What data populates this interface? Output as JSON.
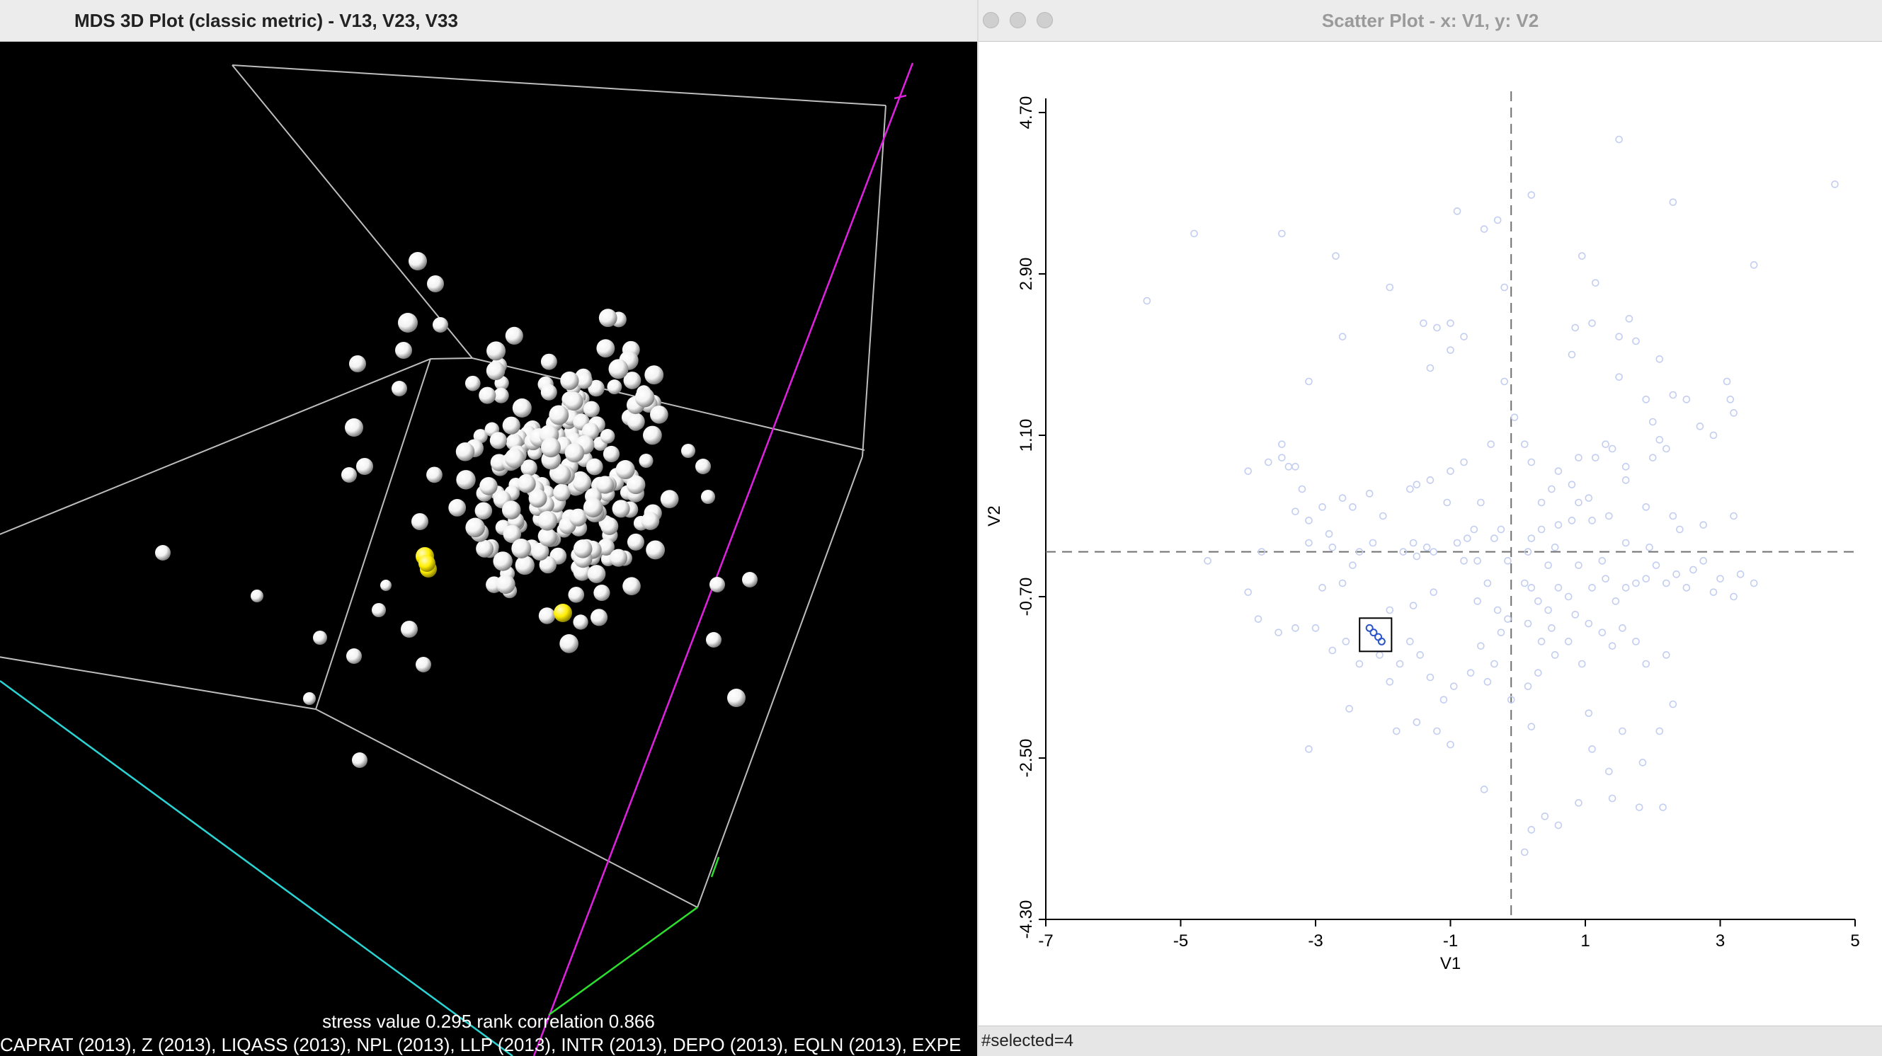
{
  "mds_window": {
    "title": "MDS 3D Plot (classic metric) - V13, V23, V33",
    "stress_text": "stress value 0.295 rank correlation 0.866",
    "variables_text": "CAPRAT (2013), Z (2013), LIQASS (2013), NPL (2013), LLP (2013), INTR (2013), DEPO (2013), EQLN (2013), EXPE",
    "colors": {
      "point": "#f2f2f2",
      "selected": "#ffee00",
      "box": "#bdbdbd",
      "x_axis": "#2ad4d4",
      "y_axis": "#e020e0",
      "z_axis": "#2ee02e"
    }
  },
  "scatter_window": {
    "title": "Scatter Plot - x: V1, y: V2",
    "status": "#selected=4",
    "colors": {
      "point": "#c2cdf0",
      "selected": "#2a55c8",
      "dash": "#707070"
    }
  },
  "chart_data": {
    "type": "scatter",
    "xlabel": "V1",
    "ylabel": "V2",
    "xlim": [
      -7,
      5
    ],
    "ylim": [
      -4.3,
      4.7
    ],
    "xticks": [
      "-7",
      "-5",
      "-3",
      "-1",
      "1",
      "3",
      "5"
    ],
    "yticks": [
      "-4.30",
      "-2.50",
      "-0.70",
      "1.10",
      "2.90",
      "4.70"
    ],
    "mean_x": -0.1,
    "mean_y": -0.2,
    "selected_count": 4,
    "selected_points": [
      [
        -2.2,
        -1.05
      ],
      [
        -2.14,
        -1.1
      ],
      [
        -2.07,
        -1.15
      ],
      [
        -2.02,
        -1.2
      ]
    ],
    "points": [
      [
        0.2,
        3.78
      ],
      [
        1.5,
        4.4
      ],
      [
        2.3,
        3.7
      ],
      [
        3.5,
        3.0
      ],
      [
        4.7,
        3.9
      ],
      [
        -0.9,
        3.6
      ],
      [
        -0.5,
        3.4
      ],
      [
        -0.3,
        3.5
      ],
      [
        -4.8,
        3.35
      ],
      [
        -3.5,
        3.35
      ],
      [
        -5.5,
        2.6
      ],
      [
        -1.9,
        2.75
      ],
      [
        -2.7,
        3.1
      ],
      [
        0.95,
        3.1
      ],
      [
        1.15,
        2.8
      ],
      [
        -0.2,
        2.75
      ],
      [
        -1.0,
        2.35
      ],
      [
        -1.2,
        2.3
      ],
      [
        -1.4,
        2.35
      ],
      [
        -0.8,
        2.2
      ],
      [
        -1.0,
        2.05
      ],
      [
        -2.6,
        2.2
      ],
      [
        -3.1,
        1.7
      ],
      [
        -1.3,
        1.85
      ],
      [
        -0.2,
        1.7
      ],
      [
        0.8,
        2.0
      ],
      [
        0.85,
        2.3
      ],
      [
        1.5,
        2.2
      ],
      [
        1.75,
        2.15
      ],
      [
        1.1,
        2.35
      ],
      [
        1.65,
        2.4
      ],
      [
        2.1,
        1.95
      ],
      [
        2.5,
        1.5
      ],
      [
        1.9,
        1.5
      ],
      [
        1.5,
        1.75
      ],
      [
        2.7,
        1.2
      ],
      [
        3.1,
        1.7
      ],
      [
        3.15,
        1.5
      ],
      [
        3.2,
        1.35
      ],
      [
        2.3,
        1.55
      ],
      [
        2.1,
        1.05
      ],
      [
        2.0,
        1.25
      ],
      [
        2.9,
        1.1
      ],
      [
        2.0,
        0.85
      ],
      [
        2.2,
        0.95
      ],
      [
        1.6,
        0.75
      ],
      [
        1.3,
        1.0
      ],
      [
        1.15,
        0.85
      ],
      [
        1.4,
        0.95
      ],
      [
        0.9,
        0.85
      ],
      [
        0.8,
        0.55
      ],
      [
        0.9,
        0.35
      ],
      [
        0.8,
        0.15
      ],
      [
        1.05,
        0.4
      ],
      [
        0.35,
        0.35
      ],
      [
        0.5,
        0.5
      ],
      [
        0.6,
        0.7
      ],
      [
        0.2,
        0.8
      ],
      [
        -0.05,
        1.3
      ],
      [
        0.1,
        1.0
      ],
      [
        -0.4,
        1.0
      ],
      [
        -0.8,
        0.8
      ],
      [
        -1.0,
        0.7
      ],
      [
        -1.3,
        0.6
      ],
      [
        -1.6,
        0.5
      ],
      [
        -2.2,
        0.45
      ],
      [
        -2.6,
        0.4
      ],
      [
        -2.9,
        0.3
      ],
      [
        -3.1,
        0.15
      ],
      [
        -3.2,
        0.5
      ],
      [
        -3.3,
        0.75
      ],
      [
        -3.4,
        0.75
      ],
      [
        -3.5,
        0.85
      ],
      [
        -3.5,
        1.0
      ],
      [
        -3.7,
        0.8
      ],
      [
        -4.0,
        0.7
      ],
      [
        -3.3,
        0.25
      ],
      [
        -2.8,
        0.0
      ],
      [
        -2.45,
        0.3
      ],
      [
        -1.5,
        0.55
      ],
      [
        -0.55,
        0.35
      ],
      [
        -0.25,
        0.05
      ],
      [
        -0.35,
        -0.05
      ],
      [
        0.2,
        -0.05
      ],
      [
        0.35,
        0.05
      ],
      [
        0.55,
        -0.15
      ],
      [
        0.15,
        -0.2
      ],
      [
        -0.15,
        -0.3
      ],
      [
        -0.45,
        -0.55
      ],
      [
        -0.6,
        -0.3
      ],
      [
        -0.9,
        -0.1
      ],
      [
        -1.25,
        -0.2
      ],
      [
        -1.5,
        -0.25
      ],
      [
        -1.7,
        -0.2
      ],
      [
        -1.55,
        -0.1
      ],
      [
        -2.15,
        -0.1
      ],
      [
        -2.35,
        -0.2
      ],
      [
        -2.45,
        -0.35
      ],
      [
        -2.6,
        -0.55
      ],
      [
        -2.75,
        -0.15
      ],
      [
        -3.1,
        -0.1
      ],
      [
        -3.8,
        -0.2
      ],
      [
        -4.6,
        -0.3
      ],
      [
        -0.8,
        -0.3
      ],
      [
        -0.6,
        -0.75
      ],
      [
        -0.3,
        -0.85
      ],
      [
        -0.15,
        -0.95
      ],
      [
        0.1,
        -0.55
      ],
      [
        0.2,
        -0.6
      ],
      [
        0.3,
        -0.75
      ],
      [
        0.45,
        -0.85
      ],
      [
        0.6,
        -0.6
      ],
      [
        0.75,
        -0.7
      ],
      [
        0.85,
        -0.9
      ],
      [
        1.1,
        -0.6
      ],
      [
        1.3,
        -0.5
      ],
      [
        1.45,
        -0.75
      ],
      [
        1.6,
        -0.6
      ],
      [
        1.75,
        -0.55
      ],
      [
        1.9,
        -0.5
      ],
      [
        2.05,
        -0.35
      ],
      [
        2.2,
        -0.55
      ],
      [
        2.35,
        -0.45
      ],
      [
        2.5,
        -0.6
      ],
      [
        2.6,
        -0.4
      ],
      [
        2.75,
        -0.3
      ],
      [
        2.9,
        -0.65
      ],
      [
        3.0,
        -0.5
      ],
      [
        3.2,
        -0.7
      ],
      [
        3.3,
        -0.45
      ],
      [
        3.5,
        -0.55
      ],
      [
        1.05,
        -1.0
      ],
      [
        1.25,
        -1.1
      ],
      [
        1.4,
        -1.25
      ],
      [
        1.55,
        -1.05
      ],
      [
        1.75,
        -1.2
      ],
      [
        1.9,
        -1.45
      ],
      [
        2.2,
        -1.35
      ],
      [
        0.5,
        -1.05
      ],
      [
        0.35,
        -1.2
      ],
      [
        0.55,
        -1.35
      ],
      [
        0.75,
        -1.2
      ],
      [
        0.95,
        -1.45
      ],
      [
        0.3,
        -1.55
      ],
      [
        0.15,
        -1.7
      ],
      [
        -0.1,
        -1.85
      ],
      [
        -0.35,
        -1.45
      ],
      [
        -0.55,
        -1.25
      ],
      [
        -0.7,
        -1.55
      ],
      [
        -0.95,
        -1.7
      ],
      [
        -1.1,
        -1.85
      ],
      [
        -1.3,
        -1.6
      ],
      [
        -1.45,
        -1.35
      ],
      [
        -1.6,
        -1.2
      ],
      [
        -1.75,
        -1.45
      ],
      [
        -1.9,
        -1.65
      ],
      [
        -2.05,
        -1.35
      ],
      [
        -2.35,
        -1.45
      ],
      [
        -2.55,
        -1.2
      ],
      [
        -2.75,
        -1.3
      ],
      [
        -3.0,
        -1.05
      ],
      [
        -3.3,
        -1.05
      ],
      [
        -3.55,
        -1.1
      ],
      [
        -3.85,
        -0.95
      ],
      [
        -4.0,
        -0.65
      ],
      [
        -1.2,
        -2.2
      ],
      [
        -1.5,
        -2.1
      ],
      [
        -1.8,
        -2.2
      ],
      [
        -2.5,
        -1.95
      ],
      [
        -3.1,
        -2.4
      ],
      [
        -1.0,
        -2.35
      ],
      [
        0.2,
        -2.15
      ],
      [
        1.05,
        -2.0
      ],
      [
        1.55,
        -2.2
      ],
      [
        1.1,
        -2.4
      ],
      [
        2.3,
        -1.9
      ],
      [
        1.35,
        -2.65
      ],
      [
        1.85,
        -2.55
      ],
      [
        1.4,
        -2.95
      ],
      [
        1.8,
        -3.05
      ],
      [
        2.15,
        -3.05
      ],
      [
        0.4,
        -3.15
      ],
      [
        0.6,
        -3.25
      ],
      [
        0.9,
        -3.0
      ],
      [
        0.2,
        -3.3
      ],
      [
        0.1,
        -3.55
      ],
      [
        -0.5,
        -2.85
      ],
      [
        2.1,
        -2.2
      ],
      [
        -0.25,
        -1.1
      ],
      [
        0.45,
        -0.35
      ],
      [
        1.25,
        -0.3
      ],
      [
        1.6,
        -0.1
      ],
      [
        1.95,
        -0.15
      ],
      [
        2.4,
        0.05
      ],
      [
        2.75,
        0.1
      ],
      [
        1.1,
        0.15
      ],
      [
        0.6,
        0.1
      ],
      [
        1.35,
        0.2
      ],
      [
        1.6,
        0.6
      ],
      [
        1.9,
        0.3
      ],
      [
        2.3,
        0.2
      ],
      [
        3.2,
        0.2
      ],
      [
        -0.75,
        -0.05
      ],
      [
        -1.05,
        0.35
      ],
      [
        -0.65,
        0.05
      ],
      [
        -1.35,
        -0.15
      ],
      [
        -2.0,
        0.2
      ],
      [
        -1.9,
        -0.85
      ],
      [
        -1.55,
        -0.8
      ],
      [
        -1.25,
        -0.65
      ],
      [
        -2.9,
        -0.6
      ],
      [
        0.15,
        -1.0
      ],
      [
        0.9,
        -0.35
      ],
      [
        -0.45,
        -1.65
      ]
    ]
  }
}
